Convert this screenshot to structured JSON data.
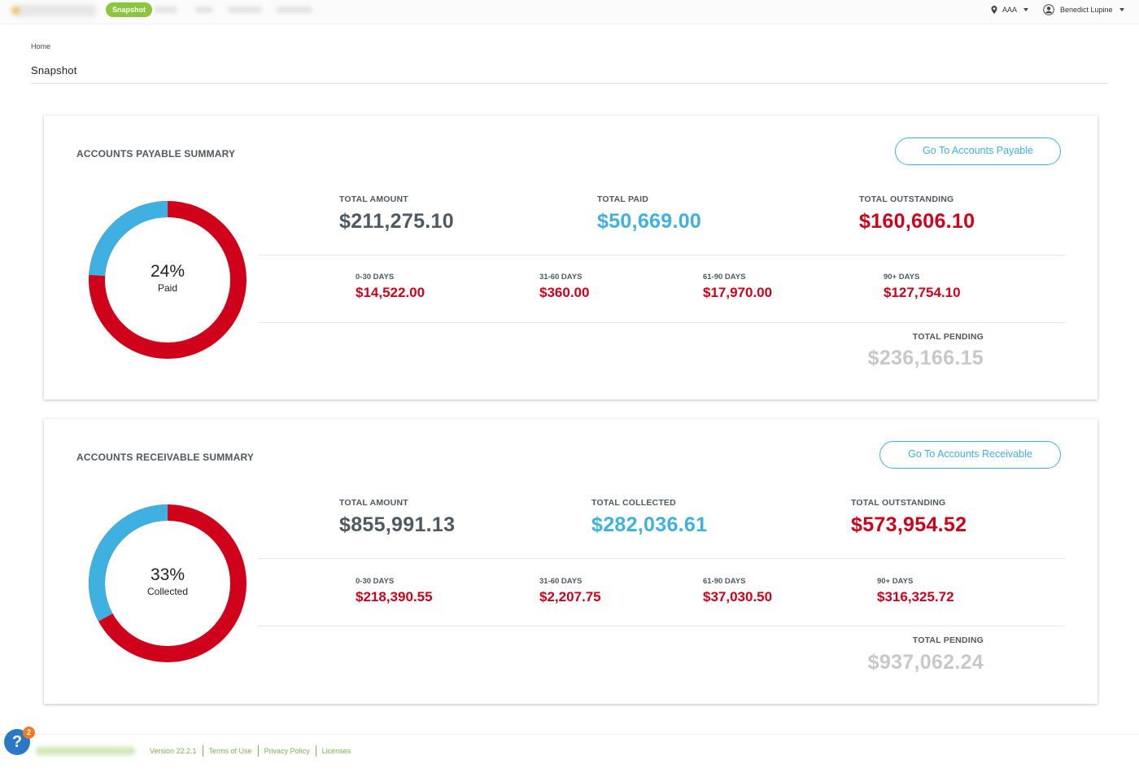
{
  "topbar": {
    "active_tab": "Snapshot",
    "location": "AAA",
    "user": "Benedict Lupine"
  },
  "breadcrumb": "Home",
  "page_title": "Snapshot",
  "payable": {
    "heading": "ACCOUNTS PAYABLE SUMMARY",
    "button": "Go To Accounts Payable",
    "percent": 24,
    "percent_text": "24%",
    "percent_label": "Paid",
    "total_amount_label": "TOTAL AMOUNT",
    "total_amount": "$211,275.10",
    "total_paid_label": "TOTAL PAID",
    "total_paid": "$50,669.00",
    "total_outstanding_label": "TOTAL OUTSTANDING",
    "total_outstanding": "$160,606.10",
    "aging": [
      {
        "label": "0-30 DAYS",
        "value": "$14,522.00"
      },
      {
        "label": "31-60 DAYS",
        "value": "$360.00"
      },
      {
        "label": "61-90 DAYS",
        "value": "$17,970.00"
      },
      {
        "label": "90+ DAYS",
        "value": "$127,754.10"
      }
    ],
    "total_pending_label": "TOTAL PENDING",
    "total_pending": "$236,166.15"
  },
  "receivable": {
    "heading": "ACCOUNTS RECEIVABLE SUMMARY",
    "button": "Go To Accounts Receivable",
    "percent": 33,
    "percent_text": "33%",
    "percent_label": "Collected",
    "total_amount_label": "TOTAL AMOUNT",
    "total_amount": "$855,991.13",
    "total_collected_label": "TOTAL COLLECTED",
    "total_collected": "$282,036.61",
    "total_outstanding_label": "TOTAL OUTSTANDING",
    "total_outstanding": "$573,954.52",
    "aging": [
      {
        "label": "0-30 DAYS",
        "value": "$218,390.55"
      },
      {
        "label": "31-60 DAYS",
        "value": "$2,207.75"
      },
      {
        "label": "61-90 DAYS",
        "value": "$37,030.50"
      },
      {
        "label": "90+ DAYS",
        "value": "$316,325.72"
      }
    ],
    "total_pending_label": "TOTAL PENDING",
    "total_pending": "$937,062.24"
  },
  "colors": {
    "paid": "#3fb1e0",
    "outstanding": "#d0021b",
    "accent_green": "#8cc63f"
  },
  "footer": {
    "help_badge": "2",
    "links": [
      "Version 22.2.1",
      "Terms of Use",
      "Privacy Policy",
      "Licenses"
    ]
  }
}
